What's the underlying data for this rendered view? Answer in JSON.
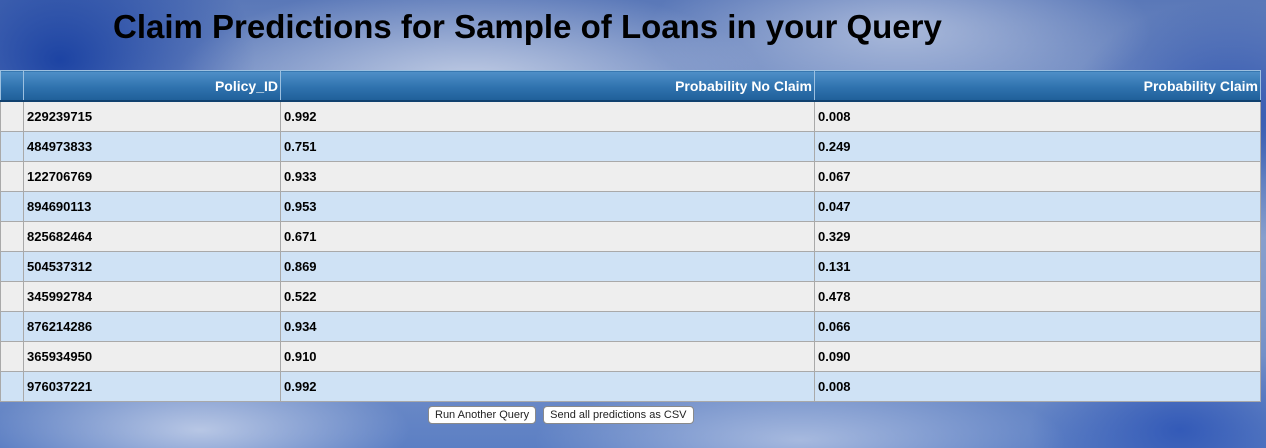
{
  "page": {
    "title": "Claim Predictions for Sample of Loans in your Query"
  },
  "table": {
    "columns": [
      "",
      "Policy_ID",
      "Probability No Claim",
      "Probability Claim"
    ],
    "rows": [
      {
        "policy_id": "229239715",
        "prob_no_claim": "0.992",
        "prob_claim": "0.008"
      },
      {
        "policy_id": "484973833",
        "prob_no_claim": "0.751",
        "prob_claim": "0.249"
      },
      {
        "policy_id": "122706769",
        "prob_no_claim": "0.933",
        "prob_claim": "0.067"
      },
      {
        "policy_id": "894690113",
        "prob_no_claim": "0.953",
        "prob_claim": "0.047"
      },
      {
        "policy_id": "825682464",
        "prob_no_claim": "0.671",
        "prob_claim": "0.329"
      },
      {
        "policy_id": "504537312",
        "prob_no_claim": "0.869",
        "prob_claim": "0.131"
      },
      {
        "policy_id": "345992784",
        "prob_no_claim": "0.522",
        "prob_claim": "0.478"
      },
      {
        "policy_id": "876214286",
        "prob_no_claim": "0.934",
        "prob_claim": "0.066"
      },
      {
        "policy_id": "365934950",
        "prob_no_claim": "0.910",
        "prob_claim": "0.090"
      },
      {
        "policy_id": "976037221",
        "prob_no_claim": "0.992",
        "prob_claim": "0.008"
      }
    ]
  },
  "buttons": {
    "run_another_query": "Run Another Query",
    "send_csv": "Send all predictions as CSV"
  },
  "colors": {
    "header_blue": "#2f72ae",
    "row_gray": "#eeeeee",
    "row_blue": "#cfe2f5"
  }
}
